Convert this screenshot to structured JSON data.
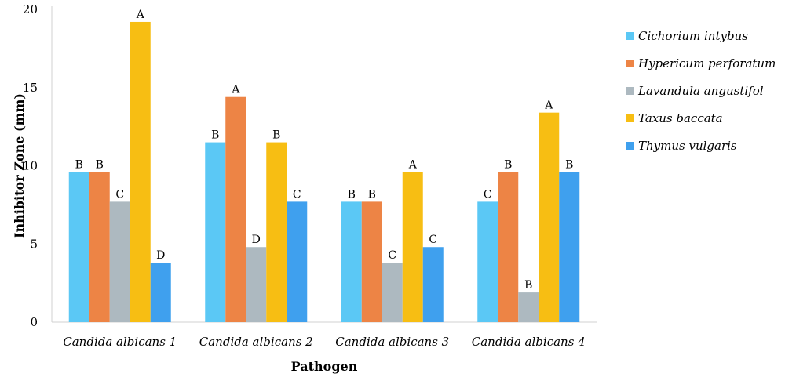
{
  "chart_data": {
    "type": "bar",
    "title": "",
    "xlabel": "Pathogen",
    "ylabel": "Inhibitor Zone (mm)",
    "ylim": [
      0,
      20
    ],
    "yticks": [
      0,
      5,
      10,
      15,
      20
    ],
    "grid": false,
    "legend_position": "right",
    "categories": [
      "Candida albicans 1",
      "Candida albicans 2",
      "Candida albicans 3",
      "Candida albicans 4"
    ],
    "series": [
      {
        "name": "Cichorium intybus",
        "color": "#5BC8F5",
        "values": [
          9.6,
          11.5,
          7.7,
          7.7
        ],
        "labels": [
          "B",
          "B",
          "B",
          "C"
        ]
      },
      {
        "name": "Hypericum perforatum",
        "color": "#ED8445",
        "values": [
          9.6,
          14.4,
          7.7,
          9.6
        ],
        "labels": [
          "B",
          "A",
          "B",
          "B"
        ]
      },
      {
        "name": "Lavandula angustifol",
        "color": "#ADB9C0",
        "values": [
          7.7,
          4.8,
          3.8,
          1.9
        ],
        "labels": [
          "C",
          "D",
          "C",
          "B"
        ]
      },
      {
        "name": "Taxus baccata",
        "color": "#F7BE13",
        "values": [
          19.2,
          11.5,
          9.6,
          13.4
        ],
        "labels": [
          "A",
          "B",
          "A",
          "A"
        ]
      },
      {
        "name": "Thymus vulgaris",
        "color": "#3FA0EE",
        "values": [
          3.8,
          7.7,
          4.8,
          9.6
        ],
        "labels": [
          "D",
          "C",
          "C",
          "B"
        ]
      }
    ]
  }
}
